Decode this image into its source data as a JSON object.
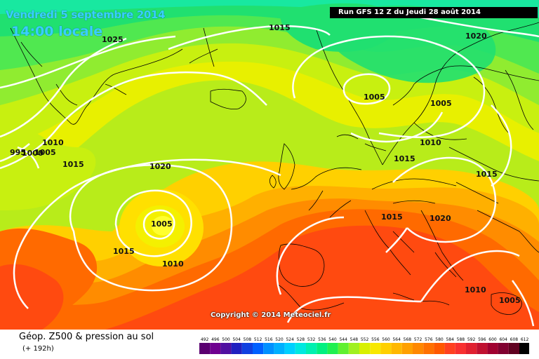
{
  "header": {
    "date": "Vendredi 5 septembre 2014",
    "time": "14:00 locale",
    "run": "Run GFS 12 Z du Jeudi 28 août 2014"
  },
  "copyright": "Copyright © 2014 Meteociel.fr",
  "legend": {
    "title": "Géop. Z500 & pression au sol",
    "lead": "(+ 192h)",
    "scale_values": [
      "492",
      "496",
      "500",
      "504",
      "508",
      "512",
      "516",
      "520",
      "524",
      "528",
      "532",
      "536",
      "540",
      "544",
      "548",
      "552",
      "556",
      "560",
      "564",
      "568",
      "572",
      "576",
      "580",
      "584",
      "588",
      "592",
      "596",
      "600",
      "604",
      "608",
      "612"
    ],
    "scale_colors": [
      "#5a0070",
      "#6e0090",
      "#5010a0",
      "#2020c0",
      "#1040e0",
      "#0060ff",
      "#0090ff",
      "#00b0ff",
      "#00d0ff",
      "#00e8e0",
      "#00f0b0",
      "#00f080",
      "#20f050",
      "#60f030",
      "#a0f020",
      "#d8f000",
      "#f8e800",
      "#ffd000",
      "#ffb800",
      "#ffa000",
      "#ff8800",
      "#ff7000",
      "#ff5800",
      "#ff4020",
      "#f83030",
      "#e02030",
      "#c01030",
      "#a00030",
      "#800030",
      "#600020",
      "#000000"
    ]
  },
  "isobars": [
    {
      "value": "1025"
    },
    {
      "value": "1015"
    },
    {
      "value": "1020"
    },
    {
      "value": "1005"
    },
    {
      "value": "1005"
    },
    {
      "value": "1010"
    },
    {
      "value": "1010"
    },
    {
      "value": "1015"
    },
    {
      "value": "1020"
    },
    {
      "value": "1005"
    },
    {
      "value": "1015"
    },
    {
      "value": "1010"
    },
    {
      "value": "1015"
    },
    {
      "value": "1015"
    },
    {
      "value": "1015"
    },
    {
      "value": "1020"
    },
    {
      "value": "1010"
    },
    {
      "value": "1005"
    },
    {
      "value": "995"
    },
    {
      "value": "1000"
    },
    {
      "value": "1005"
    }
  ]
}
